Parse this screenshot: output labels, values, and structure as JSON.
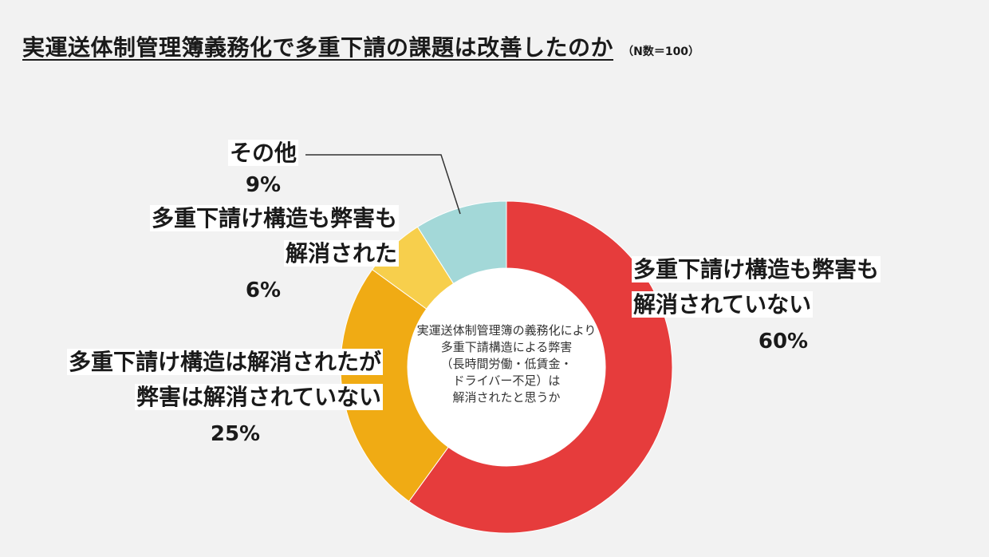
{
  "title": "実運送体制管理簿義務化で多重下請の課題は改善したのか",
  "n_note": "（N数＝100）",
  "center_text": [
    "実運送体制管理簿の義務化により",
    "多重下請構造による弊害",
    "（長時間労働・低賃金・",
    "ドライバー不足）は",
    "解消されたと思うか"
  ],
  "chart_data": {
    "type": "pie",
    "donut": true,
    "title": "実運送体制管理簿義務化で多重下請の課題は改善したのか",
    "slices": [
      {
        "label_lines": [
          "多重下請け構造も弊害も",
          "解消されていない"
        ],
        "value": 60,
        "value_label": "60%",
        "color": "#e63c3c"
      },
      {
        "label_lines": [
          "多重下請け構造は解消されたが",
          "弊害は解消されていない"
        ],
        "value": 25,
        "value_label": "25%",
        "color": "#f0ab14"
      },
      {
        "label_lines": [
          "多重下請け構造も弊害も",
          "解消された"
        ],
        "value": 6,
        "value_label": "6%",
        "color": "#f7cf4c"
      },
      {
        "label_lines": [
          "その他"
        ],
        "value": 9,
        "value_label": "9%",
        "color": "#a3d8d8"
      }
    ]
  }
}
